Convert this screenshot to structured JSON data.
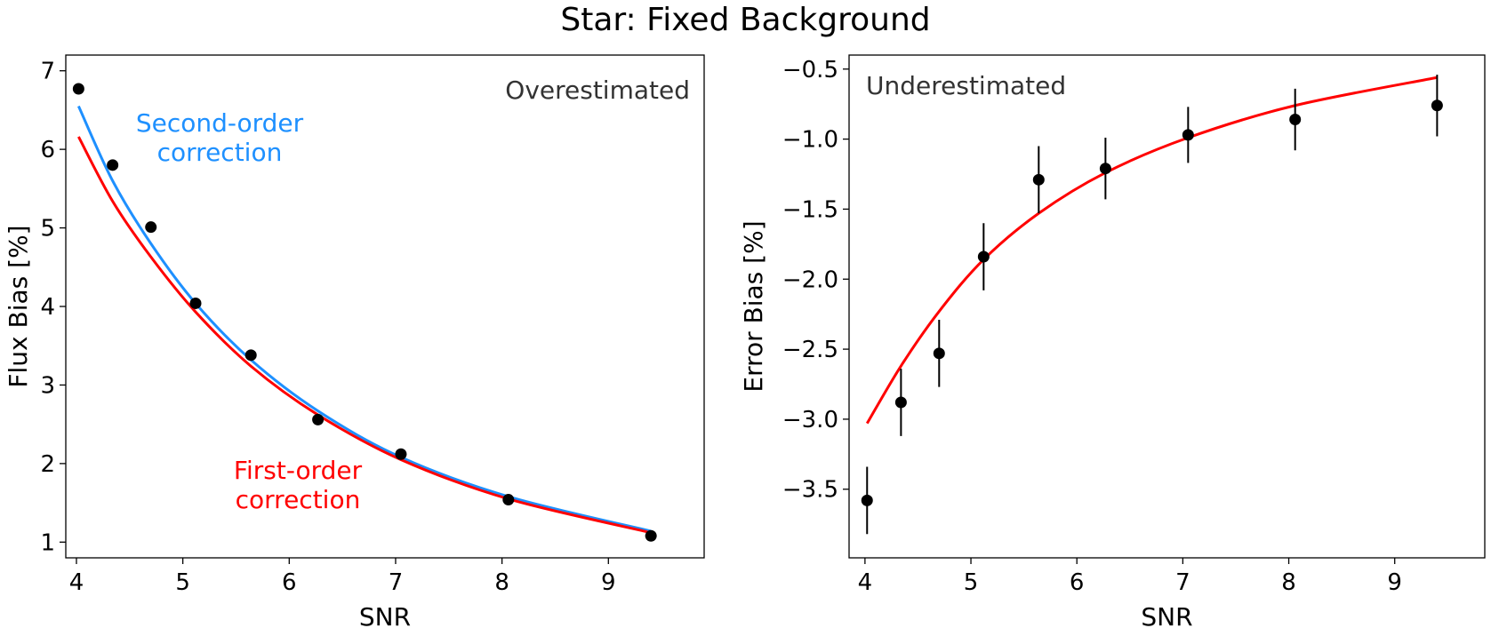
{
  "figure": {
    "title": "Star: Fixed Background"
  },
  "chart_data": [
    {
      "type": "scatter",
      "xlabel": "SNR",
      "ylabel": "Flux Bias [%]",
      "xlim": [
        3.9,
        9.9
      ],
      "ylim": [
        0.8,
        7.2
      ],
      "xticks": [
        4,
        5,
        6,
        7,
        8,
        9
      ],
      "yticks": [
        1,
        2,
        3,
        4,
        5,
        6,
        7
      ],
      "grid": false,
      "annotations": [
        {
          "text": "Overestimated",
          "color": "#333333"
        },
        {
          "text": "Second-order",
          "color": "#1E90FF"
        },
        {
          "text": "correction",
          "color": "#1E90FF"
        },
        {
          "text": "First-order",
          "color": "#FF0000"
        },
        {
          "text": "correction",
          "color": "#FF0000"
        }
      ],
      "series": [
        {
          "kind": "points",
          "color": "#000000",
          "x": [
            4.02,
            4.34,
            4.7,
            5.12,
            5.64,
            6.27,
            7.05,
            8.06,
            9.4
          ],
          "y": [
            6.77,
            5.8,
            5.01,
            4.04,
            3.38,
            2.56,
            2.12,
            1.54,
            1.08
          ]
        },
        {
          "kind": "line",
          "color": "#1E90FF",
          "x": [
            4.02,
            4.34,
            4.7,
            5.12,
            5.64,
            6.27,
            7.05,
            8.06,
            9.4
          ],
          "y": [
            6.55,
            5.6,
            4.8,
            4.04,
            3.32,
            2.67,
            2.08,
            1.58,
            1.14
          ]
        },
        {
          "kind": "line",
          "color": "#FF0000",
          "x": [
            4.02,
            4.34,
            4.7,
            5.12,
            5.64,
            6.27,
            7.05,
            8.06,
            9.4
          ],
          "y": [
            6.16,
            5.34,
            4.63,
            3.93,
            3.24,
            2.62,
            2.05,
            1.55,
            1.12
          ]
        }
      ]
    },
    {
      "type": "scatter",
      "xlabel": "SNR",
      "ylabel": "Error Bias [%]",
      "xlim": [
        3.85,
        9.85
      ],
      "ylim": [
        -3.99,
        -0.4
      ],
      "xticks": [
        4,
        5,
        6,
        7,
        8,
        9
      ],
      "yticks": [
        -3.5,
        -3.0,
        -2.5,
        -2.0,
        -1.5,
        -1.0,
        -0.5
      ],
      "yticklabels": [
        "−3.5",
        "−3.0",
        "−2.5",
        "−2.0",
        "−1.5",
        "−1.0",
        "−0.5"
      ],
      "grid": false,
      "annotations": [
        {
          "text": "Underestimated",
          "color": "#333333"
        }
      ],
      "series": [
        {
          "kind": "points_with_errorbars",
          "color": "#000000",
          "x": [
            4.02,
            4.34,
            4.7,
            5.12,
            5.64,
            6.27,
            7.05,
            8.06,
            9.4
          ],
          "y": [
            -3.58,
            -2.88,
            -2.53,
            -1.84,
            -1.29,
            -1.21,
            -0.97,
            -0.86,
            -0.76
          ],
          "yerr": [
            0.24,
            0.24,
            0.24,
            0.24,
            0.24,
            0.22,
            0.2,
            0.22,
            0.22
          ]
        },
        {
          "kind": "line",
          "color": "#FF0000",
          "x": [
            4.02,
            4.34,
            4.7,
            5.12,
            5.64,
            6.27,
            7.05,
            8.06,
            9.4
          ],
          "y": [
            -3.03,
            -2.62,
            -2.23,
            -1.86,
            -1.53,
            -1.24,
            -0.99,
            -0.76,
            -0.56
          ]
        }
      ]
    }
  ]
}
